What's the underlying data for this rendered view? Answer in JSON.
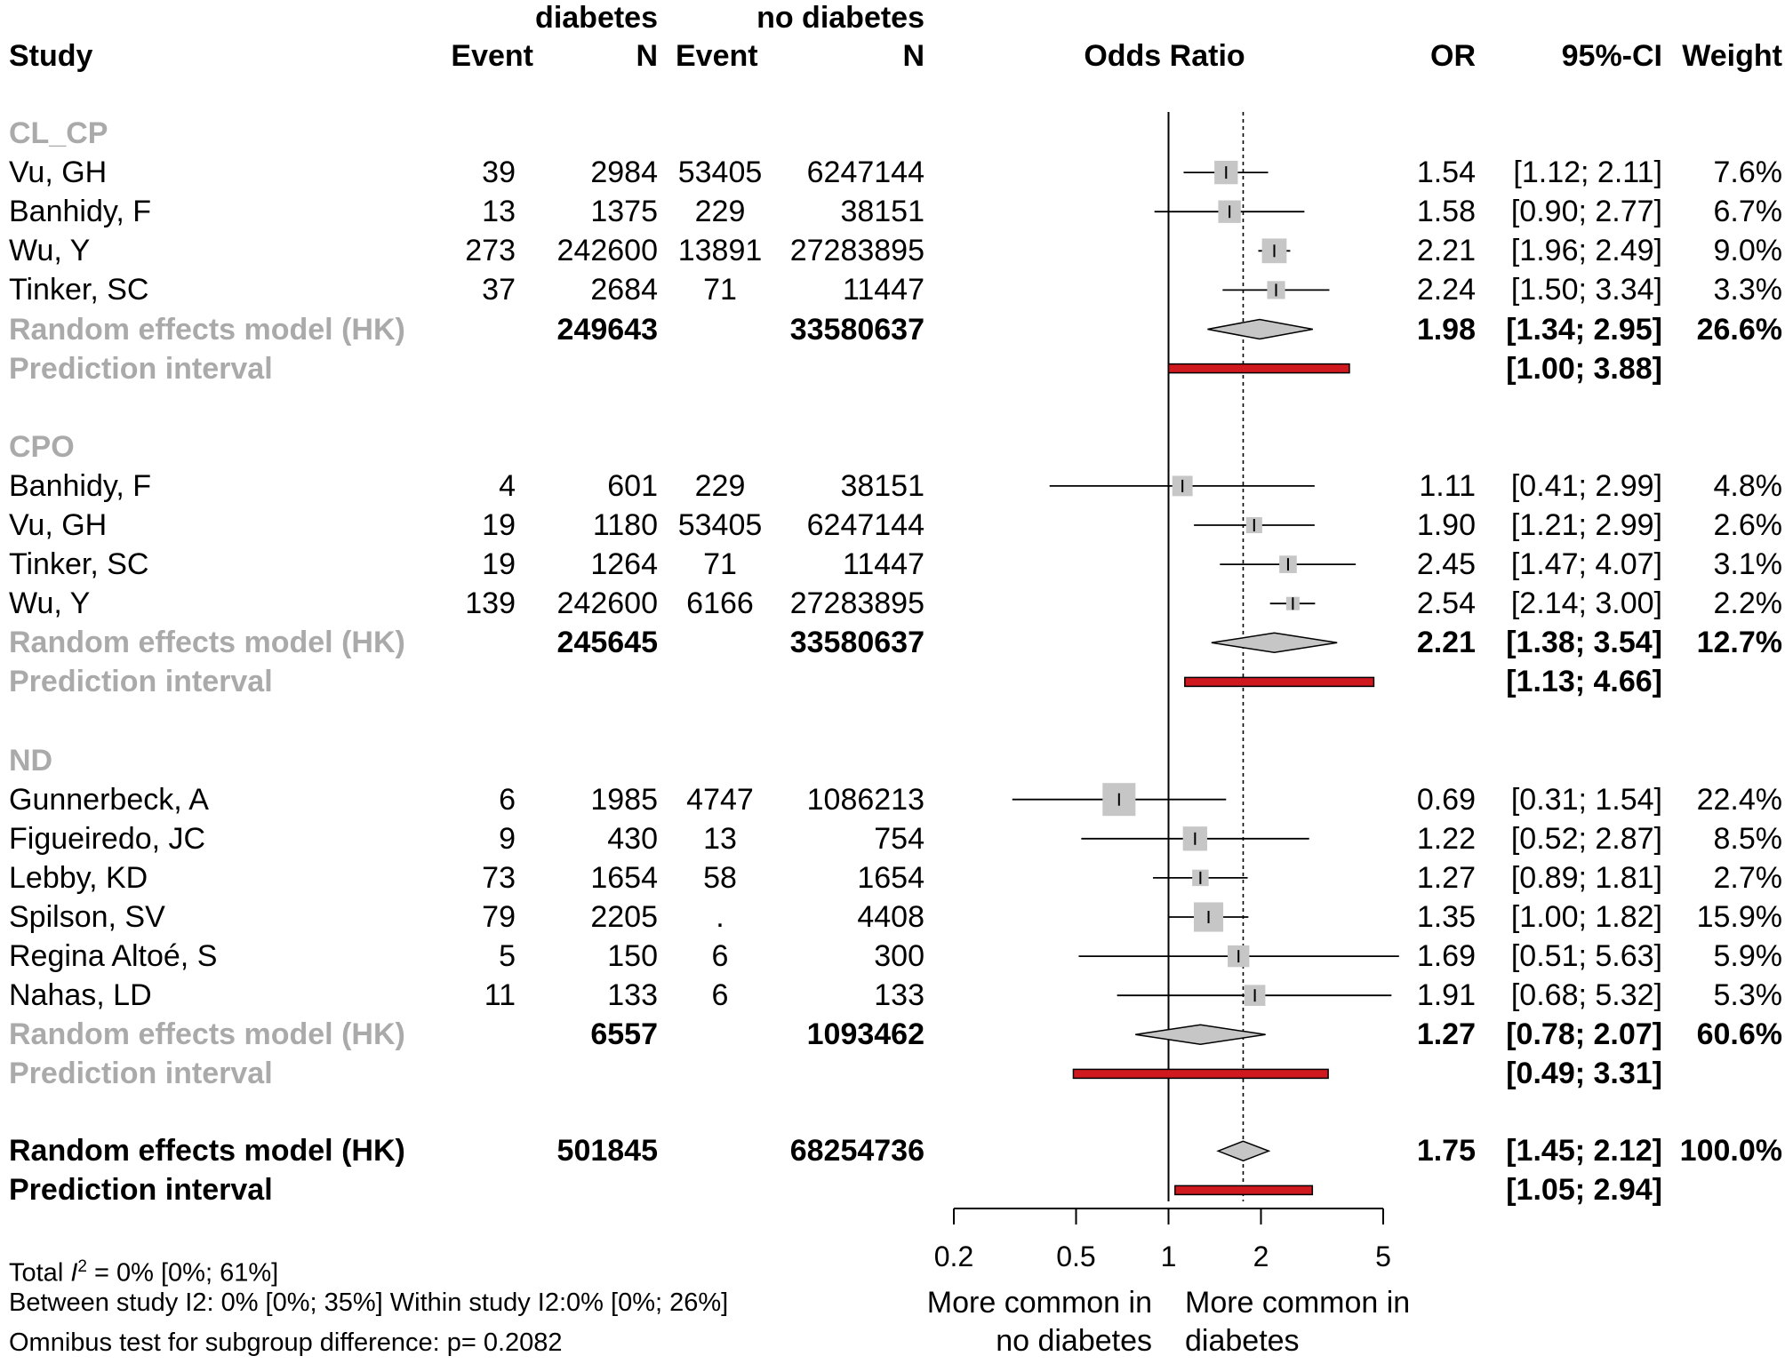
{
  "chart_data": {
    "type": "forest",
    "title": "Odds Ratio",
    "header": {
      "group1": "diabetes",
      "group2": "no diabetes",
      "study": "Study",
      "event": "Event",
      "n": "N",
      "plot_title": "Odds Ratio",
      "or": "OR",
      "ci": "95%-CI",
      "weight": "Weight"
    },
    "x_scale": "log",
    "xlim": [
      0.2,
      5
    ],
    "reference_line": 1,
    "overall_line": 1.75,
    "x_ticks": [
      "0.2",
      "0.5",
      "1",
      "2",
      "5"
    ],
    "x_tick_values": [
      0.2,
      0.5,
      1,
      2,
      5
    ],
    "xlabel_left": [
      "More common in",
      "no diabetes"
    ],
    "xlabel_right": [
      "More common in",
      "diabetes"
    ],
    "colors": {
      "square": "#c6c6c6",
      "diamond": "#c6c6c6",
      "prediction": "#d0191e",
      "group_label": "#aaaaaa"
    },
    "groups": [
      {
        "name": "CL_CP",
        "studies": [
          {
            "study": "Vu, GH",
            "e1": "39",
            "n1": "2984",
            "e2": "53405",
            "n2": "6247144",
            "or": 1.54,
            "lo": 1.12,
            "hi": 2.11,
            "or_text": "1.54",
            "ci_text": "[1.12; 2.11]",
            "weight_text": "7.6%",
            "weight": 7.6
          },
          {
            "study": "Banhidy, F",
            "e1": "13",
            "n1": "1375",
            "e2": "229",
            "n2": "38151",
            "or": 1.58,
            "lo": 0.9,
            "hi": 2.77,
            "or_text": "1.58",
            "ci_text": "[0.90; 2.77]",
            "weight_text": "6.7%",
            "weight": 6.7
          },
          {
            "study": "Wu, Y",
            "e1": "273",
            "n1": "242600",
            "e2": "13891",
            "n2": "27283895",
            "or": 2.21,
            "lo": 1.96,
            "hi": 2.49,
            "or_text": "2.21",
            "ci_text": "[1.96; 2.49]",
            "weight_text": "9.0%",
            "weight": 9.0
          },
          {
            "study": "Tinker, SC",
            "e1": "37",
            "n1": "2684",
            "e2": "71",
            "n2": "11447",
            "or": 2.24,
            "lo": 1.5,
            "hi": 3.34,
            "or_text": "2.24",
            "ci_text": "[1.50; 3.34]",
            "weight_text": "3.3%",
            "weight": 3.3
          }
        ],
        "model": {
          "label": "Random effects model (HK)",
          "n1": "249643",
          "n2": "33580637",
          "or": 1.98,
          "lo": 1.34,
          "hi": 2.95,
          "or_text": "1.98",
          "ci_text": "[1.34; 2.95]",
          "weight_text": "26.6%"
        },
        "prediction": {
          "label": "Prediction interval",
          "lo": 1.0,
          "hi": 3.88,
          "ci_text": "[1.00; 3.88]"
        }
      },
      {
        "name": "CPO",
        "studies": [
          {
            "study": "Banhidy, F",
            "e1": "4",
            "n1": "601",
            "e2": "229",
            "n2": "38151",
            "or": 1.11,
            "lo": 0.41,
            "hi": 2.99,
            "or_text": "1.11",
            "ci_text": "[0.41; 2.99]",
            "weight_text": "4.8%",
            "weight": 4.8
          },
          {
            "study": "Vu, GH",
            "e1": "19",
            "n1": "1180",
            "e2": "53405",
            "n2": "6247144",
            "or": 1.9,
            "lo": 1.21,
            "hi": 2.99,
            "or_text": "1.90",
            "ci_text": "[1.21; 2.99]",
            "weight_text": "2.6%",
            "weight": 2.6
          },
          {
            "study": "Tinker, SC",
            "e1": "19",
            "n1": "1264",
            "e2": "71",
            "n2": "11447",
            "or": 2.45,
            "lo": 1.47,
            "hi": 4.07,
            "or_text": "2.45",
            "ci_text": "[1.47; 4.07]",
            "weight_text": "3.1%",
            "weight": 3.1
          },
          {
            "study": "Wu, Y",
            "e1": "139",
            "n1": "242600",
            "e2": "6166",
            "n2": "27283895",
            "or": 2.54,
            "lo": 2.14,
            "hi": 3.0,
            "or_text": "2.54",
            "ci_text": "[2.14; 3.00]",
            "weight_text": "2.2%",
            "weight": 2.2
          }
        ],
        "model": {
          "label": "Random effects model (HK)",
          "n1": "245645",
          "n2": "33580637",
          "or": 2.21,
          "lo": 1.38,
          "hi": 3.54,
          "or_text": "2.21",
          "ci_text": "[1.38; 3.54]",
          "weight_text": "12.7%"
        },
        "prediction": {
          "label": "Prediction interval",
          "lo": 1.13,
          "hi": 4.66,
          "ci_text": "[1.13; 4.66]"
        }
      },
      {
        "name": "ND",
        "studies": [
          {
            "study": "Gunnerbeck, A",
            "e1": "6",
            "n1": "1985",
            "e2": "4747",
            "n2": "1086213",
            "or": 0.69,
            "lo": 0.31,
            "hi": 1.54,
            "or_text": "0.69",
            "ci_text": "[0.31; 1.54]",
            "weight_text": "22.4%",
            "weight": 22.4
          },
          {
            "study": "Figueiredo, JC",
            "e1": "9",
            "n1": "430",
            "e2": "13",
            "n2": "754",
            "or": 1.22,
            "lo": 0.52,
            "hi": 2.87,
            "or_text": "1.22",
            "ci_text": "[0.52; 2.87]",
            "weight_text": "8.5%",
            "weight": 8.5
          },
          {
            "study": "Lebby, KD",
            "e1": "73",
            "n1": "1654",
            "e2": "58",
            "n2": "1654",
            "or": 1.27,
            "lo": 0.89,
            "hi": 1.81,
            "or_text": "1.27",
            "ci_text": "[0.89; 1.81]",
            "weight_text": "2.7%",
            "weight": 2.7
          },
          {
            "study": "Spilson, SV",
            "e1": "79",
            "n1": "2205",
            "e2": ".",
            "n2": "4408",
            "or": 1.35,
            "lo": 1.0,
            "hi": 1.82,
            "or_text": "1.35",
            "ci_text": "[1.00; 1.82]",
            "weight_text": "15.9%",
            "weight": 15.9
          },
          {
            "study": "Regina Altoé, S",
            "e1": "5",
            "n1": "150",
            "e2": "6",
            "n2": "300",
            "or": 1.69,
            "lo": 0.51,
            "hi": 5.63,
            "or_text": "1.69",
            "ci_text": "[0.51; 5.63]",
            "weight_text": "5.9%",
            "weight": 5.9
          },
          {
            "study": "Nahas, LD",
            "e1": "11",
            "n1": "133",
            "e2": "6",
            "n2": "133",
            "or": 1.91,
            "lo": 0.68,
            "hi": 5.32,
            "or_text": "1.91",
            "ci_text": "[0.68; 5.32]",
            "weight_text": "5.3%",
            "weight": 5.3
          }
        ],
        "model": {
          "label": "Random effects model (HK)",
          "n1": "6557",
          "n2": "1093462",
          "or": 1.27,
          "lo": 0.78,
          "hi": 2.07,
          "or_text": "1.27",
          "ci_text": "[0.78; 2.07]",
          "weight_text": "60.6%"
        },
        "prediction": {
          "label": "Prediction interval",
          "lo": 0.49,
          "hi": 3.31,
          "ci_text": "[0.49; 3.31]"
        }
      }
    ],
    "overall": {
      "model": {
        "label": "Random effects model (HK)",
        "n1": "501845",
        "n2": "68254736",
        "or": 1.75,
        "lo": 1.45,
        "hi": 2.12,
        "or_text": "1.75",
        "ci_text": "[1.45; 2.12]",
        "weight_text": "100.0%"
      },
      "prediction": {
        "label": "Prediction interval",
        "lo": 1.05,
        "hi": 2.94,
        "ci_text": "[1.05; 2.94]"
      }
    },
    "footnotes": {
      "total_prefix": "Total ",
      "total_i": "I",
      "total_sup": "2",
      "total_rest": " = 0% [0%; 61%]",
      "between_within": "Between study I2: 0% [0%; 35%] Within study I2:0% [0%; 26%]",
      "omnibus": "Omnibus test for subgroup difference: p= 0.2082"
    }
  }
}
